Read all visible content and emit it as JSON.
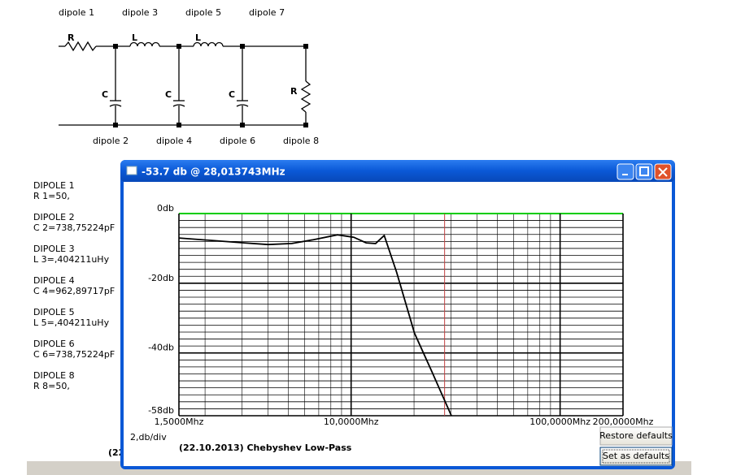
{
  "schematic": {
    "top_labels": [
      "dipole 1",
      "dipole 3",
      "dipole 5",
      "dipole 7"
    ],
    "bottom_labels": [
      "dipole 2",
      "dipole 4",
      "dipole 6",
      "dipole 8"
    ],
    "components": [
      "R",
      "L",
      "L",
      "C",
      "C",
      "C",
      "R"
    ]
  },
  "dipoles": [
    {
      "name": "DIPOLE 1",
      "value": "R 1=50,"
    },
    {
      "name": "DIPOLE 2",
      "value": "C 2=738,75224pF"
    },
    {
      "name": "DIPOLE 3",
      "value": "L 3=,404211uHy"
    },
    {
      "name": "DIPOLE 4",
      "value": "C 4=962,89717pF"
    },
    {
      "name": "DIPOLE 5",
      "value": "L 5=,404211uHy"
    },
    {
      "name": "DIPOLE 6",
      "value": "C 6=738,75224pF"
    },
    {
      "name": "DIPOLE 8",
      "value": "R 8=50,"
    }
  ],
  "background_text": "(22",
  "window": {
    "title": "-53.7 db @ 28,013743MHz",
    "scale_label": "2,db/div",
    "caption": "(22.10.2013) Chebyshev Low-Pass",
    "buttons": [
      "Restore defaults",
      "Set as defaults"
    ]
  },
  "chart_data": {
    "type": "line",
    "x": [
      1.5,
      3.07,
      4.01,
      5.2,
      6.6,
      8.6,
      10.3,
      11.8,
      13.1,
      14.4,
      16.5,
      20.1,
      24.1,
      30.2
    ],
    "values": [
      -7.0,
      -8.4,
      -8.9,
      -8.6,
      -7.5,
      -6.1,
      -6.8,
      -8.4,
      -8.6,
      -6.3,
      -16.8,
      -34.3,
      -44.8,
      -58
    ],
    "color": "#000000",
    "log_x": true,
    "xlim": [
      1.5,
      200
    ],
    "ylim": [
      -58,
      0
    ],
    "xticks": [
      {
        "value": 1.5,
        "label": "1,5000Mhz"
      },
      {
        "value": 10,
        "label": "10,0000Mhz"
      },
      {
        "value": 100,
        "label": "100,0000Mhz"
      },
      {
        "value": 200,
        "label": "200,0000Mhz"
      }
    ],
    "yticks": [
      {
        "value": 0,
        "label": "0db"
      },
      {
        "value": -20,
        "label": "-20db"
      },
      {
        "value": -40,
        "label": "-40db"
      },
      {
        "value": -58,
        "label": "-58db"
      }
    ],
    "minor_xticks": [
      2,
      3,
      4,
      5,
      6,
      7,
      8,
      9,
      20,
      30,
      40,
      50,
      60,
      70,
      80,
      90
    ],
    "minor_yticks": [
      -2,
      -4,
      -6,
      -8,
      -10,
      -12,
      -14,
      -16,
      -18,
      -22,
      -24,
      -26,
      -28,
      -30,
      -32,
      -34,
      -36,
      -38,
      -42,
      -44,
      -46,
      -48,
      -50,
      -52,
      -54,
      -56
    ],
    "marker_x": 28.013743,
    "marker_color": "#c04040",
    "top_line_color": "#00cc00"
  }
}
